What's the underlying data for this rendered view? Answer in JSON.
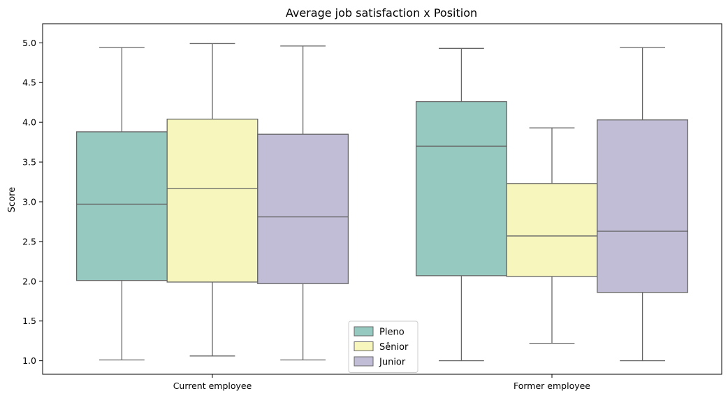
{
  "chart_data": {
    "type": "box",
    "title": "Average job satisfaction x Position",
    "xlabel": "",
    "ylabel": "Score",
    "ylim": [
      0.83,
      5.24
    ],
    "yticks": [
      1.0,
      1.5,
      2.0,
      2.5,
      3.0,
      3.5,
      4.0,
      4.5,
      5.0
    ],
    "ytick_labels": [
      "1.0",
      "1.5",
      "2.0",
      "2.5",
      "3.0",
      "3.5",
      "4.0",
      "4.5",
      "5.0"
    ],
    "categories": [
      "Current employee",
      "Former employee"
    ],
    "legend_position": "bottom-center",
    "grid": false,
    "series": [
      {
        "name": "Pleno",
        "color": "#96c9c0",
        "boxes": [
          {
            "min": 1.01,
            "q1": 2.01,
            "median": 2.97,
            "q3": 3.88,
            "max": 4.94
          },
          {
            "min": 1.0,
            "q1": 2.07,
            "median": 3.7,
            "q3": 4.26,
            "max": 4.93
          }
        ]
      },
      {
        "name": "Sênior",
        "color": "#f6f6bd",
        "boxes": [
          {
            "min": 1.06,
            "q1": 1.99,
            "median": 3.17,
            "q3": 4.04,
            "max": 4.99
          },
          {
            "min": 1.22,
            "q1": 2.06,
            "median": 2.57,
            "q3": 3.23,
            "max": 3.93
          }
        ]
      },
      {
        "name": "Junior",
        "color": "#c1bdd6",
        "boxes": [
          {
            "min": 1.01,
            "q1": 1.97,
            "median": 2.81,
            "q3": 3.85,
            "max": 4.96
          },
          {
            "min": 1.0,
            "q1": 1.86,
            "median": 2.63,
            "q3": 4.03,
            "max": 4.94
          }
        ]
      }
    ]
  },
  "colors": {
    "whisker": "#666666",
    "axis": "#000000"
  }
}
